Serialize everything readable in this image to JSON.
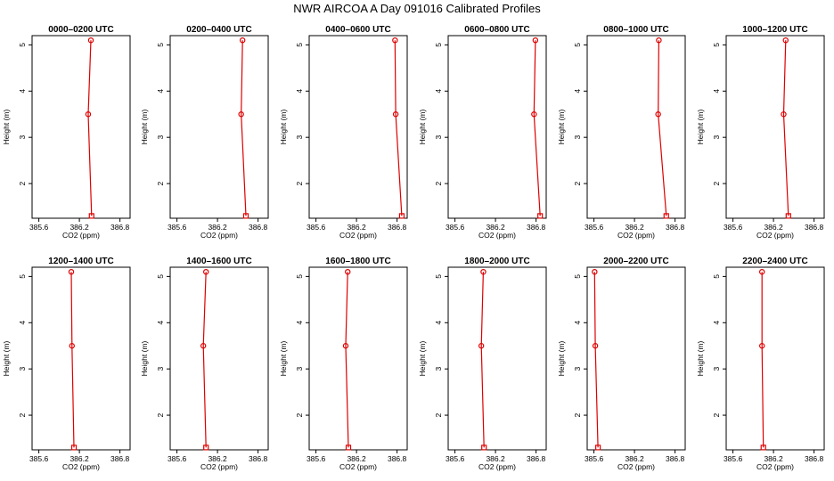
{
  "chart_data": {
    "type": "line",
    "title": "NWR AIRCOA A  Day 091016  Calibrated Profiles",
    "xlabel": "CO2 (ppm)",
    "ylabel": "Height (m)",
    "xlim": [
      385.5,
      386.95
    ],
    "ylim": [
      1.25,
      5.2
    ],
    "xticks": [
      "385.6",
      "386.2",
      "386.8"
    ],
    "xtick_values": [
      385.6,
      386.2,
      386.8
    ],
    "yticks": [
      "2",
      "3",
      "4",
      "5"
    ],
    "ytick_values": [
      2,
      3,
      4,
      5
    ],
    "color": "#dd0000",
    "panels": [
      {
        "title": "0000–0200 UTC",
        "x": [
          386.37,
          386.33,
          386.38
        ],
        "y": [
          5.1,
          3.5,
          1.3
        ]
      },
      {
        "title": "0200–0400 UTC",
        "x": [
          386.57,
          386.55,
          386.62
        ],
        "y": [
          5.1,
          3.5,
          1.3
        ]
      },
      {
        "title": "0400–0600 UTC",
        "x": [
          386.77,
          386.78,
          386.87
        ],
        "y": [
          5.1,
          3.5,
          1.3
        ]
      },
      {
        "title": "0600–0800 UTC",
        "x": [
          386.79,
          386.77,
          386.86
        ],
        "y": [
          5.1,
          3.5,
          1.3
        ]
      },
      {
        "title": "0800–1000 UTC",
        "x": [
          386.56,
          386.55,
          386.67
        ],
        "y": [
          5.1,
          3.5,
          1.3
        ]
      },
      {
        "title": "1000–1200 UTC",
        "x": [
          386.38,
          386.35,
          386.42
        ],
        "y": [
          5.1,
          3.5,
          1.3
        ]
      },
      {
        "title": "1200–1400 UTC",
        "x": [
          386.08,
          386.09,
          386.12
        ],
        "y": [
          5.1,
          3.5,
          1.3
        ]
      },
      {
        "title": "1400–1600 UTC",
        "x": [
          386.03,
          385.99,
          386.03
        ],
        "y": [
          5.1,
          3.5,
          1.3
        ]
      },
      {
        "title": "1600–1800 UTC",
        "x": [
          386.07,
          386.04,
          386.08
        ],
        "y": [
          5.1,
          3.5,
          1.3
        ]
      },
      {
        "title": "1800–2000 UTC",
        "x": [
          386.02,
          385.99,
          386.03
        ],
        "y": [
          5.1,
          3.5,
          1.3
        ]
      },
      {
        "title": "2000–2200 UTC",
        "x": [
          385.61,
          385.62,
          385.66
        ],
        "y": [
          5.1,
          3.5,
          1.3
        ]
      },
      {
        "title": "2200–2400 UTC",
        "x": [
          386.03,
          386.03,
          386.05
        ],
        "y": [
          5.1,
          3.5,
          1.3
        ]
      }
    ]
  }
}
